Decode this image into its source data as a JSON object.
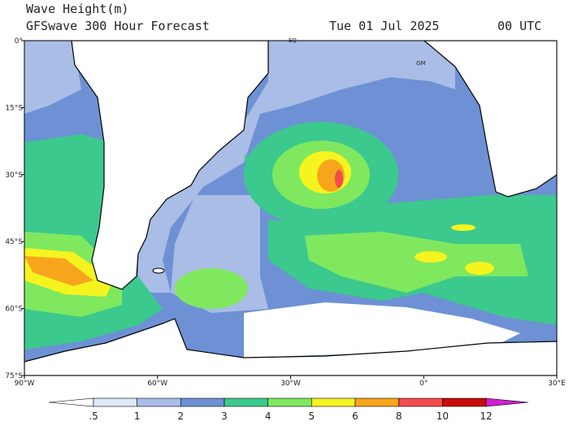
{
  "header": {
    "title": "Wave Height(m)",
    "subtitle": "GFSwave 300 Hour Forecast",
    "date": "Tue 01 Jul 2025",
    "time": "00 UTC"
  },
  "map": {
    "lat_labels": [
      "0°",
      "15°S",
      "30°S",
      "45°S",
      "60°S",
      "75°S"
    ],
    "lon_labels": [
      "90°W",
      "60°W",
      "30°W",
      "0°",
      "30°E"
    ],
    "markers": [
      "EQ",
      "GM"
    ]
  },
  "colorbar": {
    "labels": [
      ".5",
      "1",
      "2",
      "3",
      "4",
      "5",
      "6",
      "8",
      "10",
      "12"
    ],
    "colors": [
      "#ffffff",
      "#dde9f7",
      "#a9bde6",
      "#6d91d4",
      "#3cc98d",
      "#7fe85f",
      "#f6f41f",
      "#f7a51c",
      "#f24c4c",
      "#c80b0b",
      "#d21ed2"
    ]
  }
}
